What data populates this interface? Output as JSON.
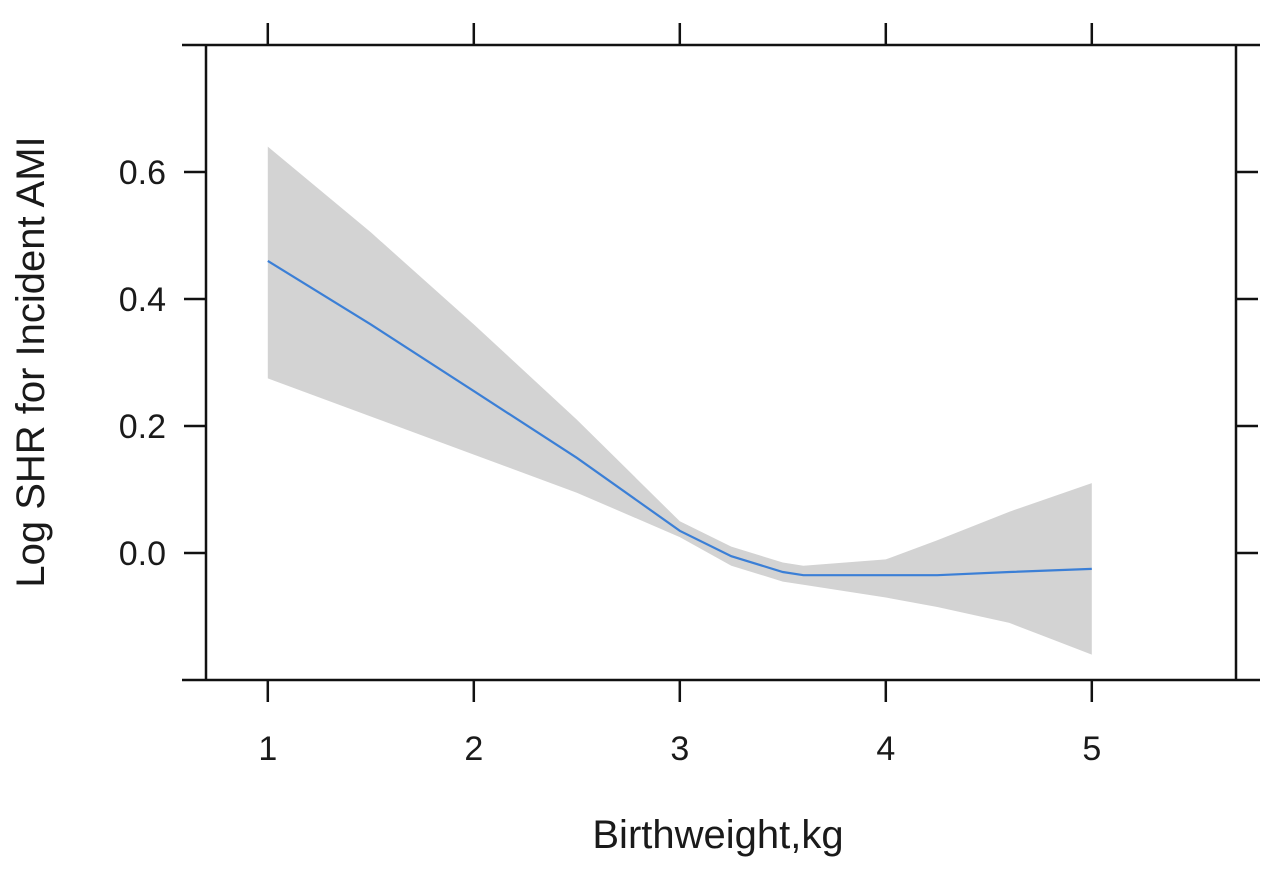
{
  "chart_data": {
    "type": "line",
    "xlabel": "Birthweight,kg",
    "ylabel": "Log SHR for Incident AMI",
    "xlim": [
      0.7,
      5.7
    ],
    "ylim": [
      -0.2,
      0.8
    ],
    "x_ticks": [
      1,
      2,
      3,
      4,
      5
    ],
    "x_tick_labels": [
      "1",
      "2",
      "3",
      "4",
      "5"
    ],
    "y_ticks": [
      0.0,
      0.2,
      0.4,
      0.6
    ],
    "y_tick_labels": [
      "0.0",
      "0.2",
      "0.4",
      "0.6"
    ],
    "grid": false,
    "series": [
      {
        "x": [
          1.0,
          1.5,
          2.0,
          2.5,
          3.0,
          3.25,
          3.5,
          3.6,
          4.0,
          4.25,
          4.6,
          5.0
        ],
        "y": [
          0.46,
          0.36,
          0.255,
          0.15,
          0.035,
          -0.005,
          -0.03,
          -0.035,
          -0.035,
          -0.035,
          -0.03,
          -0.025
        ],
        "lower": [
          0.275,
          0.215,
          0.155,
          0.095,
          0.025,
          -0.02,
          -0.045,
          -0.05,
          -0.07,
          -0.085,
          -0.11,
          -0.16
        ],
        "upper": [
          0.64,
          0.505,
          0.36,
          0.21,
          0.05,
          0.01,
          -0.015,
          -0.02,
          -0.01,
          0.02,
          0.065,
          0.11
        ]
      }
    ],
    "colors": {
      "line": "#3b7fd6",
      "band": "#d3d3d3",
      "axis": "#111111"
    }
  }
}
